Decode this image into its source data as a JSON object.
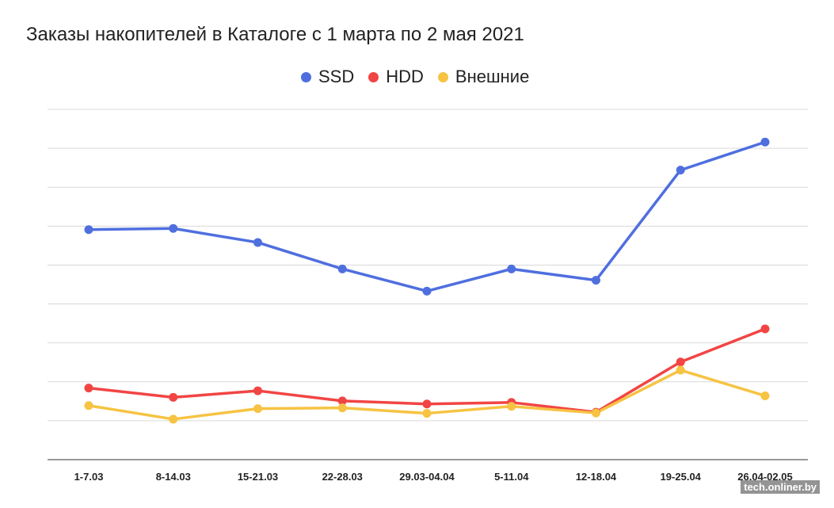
{
  "chart_data": {
    "type": "line",
    "title": "Заказы накопителей в Каталоге с 1 марта по 2 мая 2021",
    "categories": [
      "1-7.03",
      "8-14.03",
      "15-21.03",
      "22-28.03",
      "29.03-04.04",
      "5-11.04",
      "12-18.04",
      "19-25.04",
      "26.04-02.05"
    ],
    "series": [
      {
        "name": "SSD",
        "color": "#4f6fdf",
        "values": [
          59.1,
          59.4,
          55.8,
          49.0,
          43.3,
          49.0,
          46.1,
          74.4,
          81.6
        ]
      },
      {
        "name": "HDD",
        "color": "#f14544",
        "values": [
          18.4,
          16.0,
          17.7,
          15.1,
          14.3,
          14.7,
          12.2,
          25.1,
          33.6
        ]
      },
      {
        "name": "Внешние",
        "color": "#f6c343",
        "values": [
          13.9,
          10.4,
          13.1,
          13.3,
          11.9,
          13.7,
          12.0,
          23.0,
          16.4
        ]
      }
    ],
    "ylim": [
      0,
      90
    ],
    "gridlines": 9,
    "y_tick_labels_visible": false,
    "legend_position": "top-center",
    "xlabel": "",
    "ylabel": ""
  },
  "watermark": "tech.onliner.by"
}
